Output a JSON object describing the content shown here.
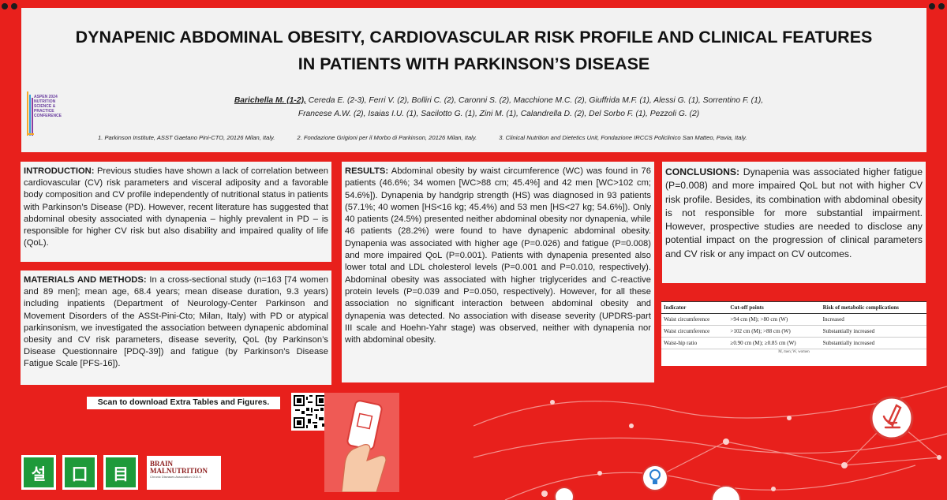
{
  "header": {
    "title_line1": "DYNAPENIC ABDOMINAL OBESITY, CARDIOVASCULAR RISK PROFILE AND CLINICAL FEATURES",
    "title_line2": "IN PATIENTS WITH PARKINSON’S DISEASE",
    "first_author": "Barichella M. (1-2),",
    "authors_line1": " Cereda E. (2-3), Ferri V. (2),  Bolliri C. (2), Caronni S. (2), Macchione M.C. (2), Giuffrida M.F. (1), Alessi G. (1), Sorrentino F. (1),",
    "authors_line2": "Francese A.W. (2), Isaias I.U. (1), Sacilotto G. (1), Zini M. (1), Calandrella D. (2), Del Sorbo F. (1), Pezzoli G. (2)",
    "affiliations": [
      "1. Parkinson Institute, ASST Gaetano Pini-CTO, 20126 Milan, Italy.",
      "2. Fondazione Grigioni per il Morbo di Parkinson, 20126 Milan, Italy.",
      "3. Clinical Nutrition and Dietetics Unit, Fondazione IRCCS Policlinico San Matteo, Pavia, Italy."
    ],
    "conference_logo_text": "ASPEN 2024 NUTRITION SCIENCE & PRACTICE CONFERENCE"
  },
  "intro": {
    "heading": "INTRODUCTION:",
    "text": " Previous studies have shown a lack of correlation between cardiovascular (CV) risk parameters and visceral adiposity and a favorable body composition and CV profile independently of nutritional status in patients with Parkinson’s Disease (PD). However, recent literature has suggested that abdominal obesity associated with dynapenia – highly prevalent in PD – is responsible for higher CV risk but also disability and impaired quality of life (QoL)."
  },
  "methods": {
    "heading": "MATERIALS AND METHODS:",
    "text": " In a cross-sectional study (n=163 [74 women and 89 men]; mean age, 68.4 years; mean disease duration, 9.3 years) including inpatients (Department of Neurology-Center Parkinson and Movement Disorders of the ASSt-Pini-Cto; Milan, Italy) with PD or atypical parkinsonism, we investigated the association between dynapenic abdominal obesity and CV risk parameters, disease severity, QoL (by Parkinson’s Disease Questionnaire [PDQ-39]) and fatigue (by Parkinson’s Disease Fatigue Scale [PFS-16])."
  },
  "results": {
    "heading": "RESULTS:",
    "text": " Abdominal obesity by waist circumference (WC) was found in 76 patients (46.6%; 34 women [WC>88 cm; 45.4%] and 42 men [WC>102 cm; 54.6%]). Dynapenia by handgrip strength (HS) was diagnosed in 93 patients (57.1%; 40 women [HS<16 kg; 45.4%) and 53 men [HS<27 kg; 54.6%]). Only 40 patients (24.5%) presented neither abdominal obesity nor dynapenia, while 46 patients (28.2%) were found to have dynapenic abdominal obesity. Dynapenia was associated with higher age (P=0.026) and fatigue (P=0.008) and more impaired QoL (P=0.001). Patients with dynapenia presented also lower total and LDL cholesterol levels (P=0.001 and P=0.010, respectively). Abdominal obesity was associated with higher triglycerides and C-reactive protein levels (P=0.039 and P=0.050, respectively). However, for all these association no significant interaction between abdominal obesity and dynapenia was detected. No association with disease severity (UPDRS-part III scale and Hoehn-Yahr stage) was observed, neither with dynapenia nor with abdominal obesity."
  },
  "conclusions": {
    "heading": "CONCLUSIONS:",
    "text": " Dynapenia was associated higher fatigue (P=0.008) and more impaired QoL but not with higher CV risk profile. Besides, its combination with abdominal obesity is not responsible for more substantial impairment. However, prospective studies are needed to disclose any potential impact on the progression of clinical parameters and CV risk or any impact on CV outcomes."
  },
  "table": {
    "headers": [
      "Indicator",
      "Cut-off points",
      "Risk of metabolic complications"
    ],
    "rows": [
      [
        "Waist circumference",
        ">94 cm (M); >80 cm (W)",
        "Increased"
      ],
      [
        "Waist circumference",
        ">102 cm (M); >88 cm (W)",
        "Substantially increased"
      ],
      [
        "Waist-hip ratio",
        "≥0.90 cm (M); ≥0.85 cm (W)",
        "Substantially increased"
      ]
    ],
    "note": "M, men; W, women"
  },
  "footer": {
    "scan_label": "Scan to download Extra Tables and Figures.",
    "logos": [
      "설",
      "囗",
      "目"
    ],
    "brain_logo_line1": "BRAIN",
    "brain_logo_line2": "MALNUTRITION",
    "brain_logo_sub": "Chronic Diseases Association O.D.V."
  },
  "colors": {
    "background": "#e8201c",
    "panel": "#f4f4f4",
    "logo_green": "#1e9a3a"
  }
}
